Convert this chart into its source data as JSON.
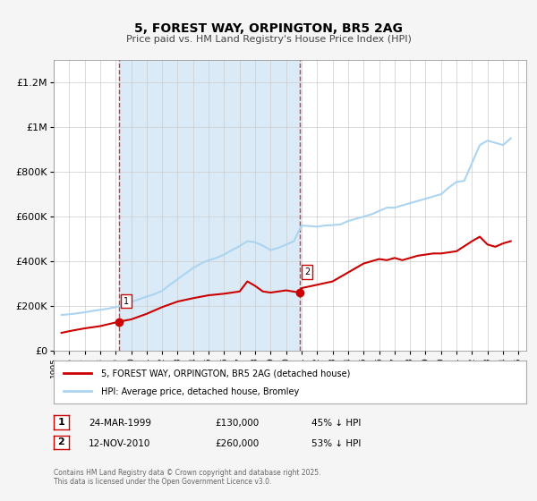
{
  "title": "5, FOREST WAY, ORPINGTON, BR5 2AG",
  "subtitle": "Price paid vs. HM Land Registry's House Price Index (HPI)",
  "legend_line1": "5, FOREST WAY, ORPINGTON, BR5 2AG (detached house)",
  "legend_line2": "HPI: Average price, detached house, Bromley",
  "sale1_label": "1",
  "sale1_date": "24-MAR-1999",
  "sale1_price": "£130,000",
  "sale1_hpi": "45% ↓ HPI",
  "sale1_year": 1999.22,
  "sale1_value": 130000,
  "sale2_label": "2",
  "sale2_date": "12-NOV-2010",
  "sale2_price": "£260,000",
  "sale2_hpi": "53% ↓ HPI",
  "sale2_year": 2010.87,
  "sale2_value": 260000,
  "hpi_color": "#aad4f0",
  "price_color": "#cc0000",
  "bg_color": "#f5f5f5",
  "plot_bg": "#ffffff",
  "shade_color": "#daeaf7",
  "vline_color": "#dd3333",
  "grid_color": "#cccccc",
  "footer": "Contains HM Land Registry data © Crown copyright and database right 2025.\nThis data is licensed under the Open Government Licence v3.0.",
  "ylim": [
    0,
    1300000
  ],
  "xlim": [
    1995,
    2025.5
  ],
  "yticks": [
    0,
    200000,
    400000,
    600000,
    800000,
    1000000,
    1200000
  ],
  "ytick_labels": [
    "£0",
    "£200K",
    "£400K",
    "£600K",
    "£800K",
    "£1M",
    "£1.2M"
  ],
  "hpi_years": [
    1995.5,
    1996.0,
    1996.5,
    1997.0,
    1997.5,
    1998.0,
    1998.5,
    1999.0,
    1999.5,
    2000.0,
    2000.5,
    2001.0,
    2001.5,
    2002.0,
    2002.5,
    2003.0,
    2003.5,
    2004.0,
    2004.5,
    2005.0,
    2005.5,
    2006.0,
    2006.5,
    2007.0,
    2007.5,
    2008.0,
    2008.5,
    2009.0,
    2009.5,
    2010.0,
    2010.5,
    2011.0,
    2011.5,
    2012.0,
    2012.5,
    2013.0,
    2013.5,
    2014.0,
    2014.5,
    2015.0,
    2015.5,
    2016.0,
    2016.5,
    2017.0,
    2017.5,
    2018.0,
    2018.5,
    2019.0,
    2019.5,
    2020.0,
    2020.5,
    2021.0,
    2021.5,
    2022.0,
    2022.5,
    2023.0,
    2023.5,
    2024.0,
    2024.5
  ],
  "hpi_values": [
    160000,
    163000,
    167000,
    172000,
    178000,
    183000,
    188000,
    195000,
    205000,
    218000,
    230000,
    242000,
    253000,
    268000,
    295000,
    320000,
    345000,
    370000,
    390000,
    405000,
    415000,
    430000,
    450000,
    468000,
    490000,
    485000,
    470000,
    450000,
    460000,
    475000,
    490000,
    560000,
    558000,
    555000,
    560000,
    562000,
    565000,
    580000,
    590000,
    600000,
    610000,
    625000,
    640000,
    640000,
    650000,
    660000,
    670000,
    680000,
    690000,
    700000,
    730000,
    755000,
    760000,
    840000,
    920000,
    940000,
    930000,
    920000,
    950000
  ],
  "price_years": [
    1995.5,
    1996.2,
    1997.0,
    1998.0,
    1999.22,
    2000.0,
    2001.0,
    2002.0,
    2003.0,
    2004.0,
    2005.0,
    2006.0,
    2007.0,
    2007.5,
    2008.0,
    2008.5,
    2009.0,
    2010.0,
    2010.87,
    2011.0,
    2012.0,
    2013.0,
    2014.0,
    2015.0,
    2015.5,
    2016.0,
    2016.5,
    2017.0,
    2017.5,
    2018.0,
    2018.5,
    2019.0,
    2019.5,
    2020.0,
    2020.5,
    2021.0,
    2022.0,
    2022.5,
    2023.0,
    2023.5,
    2024.0,
    2024.5
  ],
  "price_values": [
    80000,
    90000,
    100000,
    110000,
    130000,
    140000,
    165000,
    195000,
    220000,
    235000,
    248000,
    255000,
    265000,
    310000,
    290000,
    265000,
    260000,
    270000,
    260000,
    280000,
    295000,
    310000,
    350000,
    390000,
    400000,
    410000,
    405000,
    415000,
    405000,
    415000,
    425000,
    430000,
    435000,
    435000,
    440000,
    445000,
    490000,
    510000,
    475000,
    465000,
    480000,
    490000
  ]
}
